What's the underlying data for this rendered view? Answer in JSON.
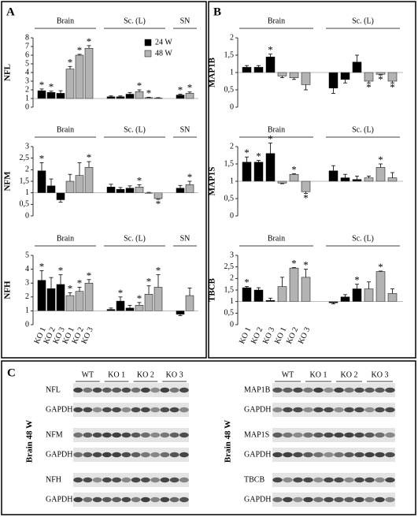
{
  "panel_labels": [
    "A",
    "B",
    "C"
  ],
  "chart_data": [
    {
      "type": "bar",
      "ylabel": "NFL",
      "ylim": [
        0,
        8
      ],
      "yticks": [
        0,
        1,
        2,
        3,
        4,
        5,
        6,
        7,
        8
      ],
      "baseline": 1,
      "legend": [
        {
          "name": "24 W",
          "color": "#000000"
        },
        {
          "name": "48 W",
          "color": "#b3b3b3"
        }
      ],
      "groups": [
        {
          "name": "Brain",
          "colors": [
            "#000000",
            "#000000",
            "#000000",
            "#b3b3b3",
            "#b3b3b3",
            "#b3b3b3"
          ],
          "values": [
            1.9,
            1.7,
            1.6,
            4.4,
            6.0,
            6.8
          ],
          "errors": [
            0.2,
            0.15,
            0.3,
            0.3,
            0.1,
            0.3
          ],
          "stars": [
            "*",
            "*",
            null,
            "*",
            "*",
            "*"
          ]
        },
        {
          "name": "Sc. (L)",
          "colors": [
            "#000000",
            "#000000",
            "#000000",
            "#b3b3b3",
            "#b3b3b3",
            "#b3b3b3"
          ],
          "values": [
            1.2,
            1.2,
            1.5,
            1.8,
            1.1,
            1.05
          ],
          "errors": [
            0.1,
            0.1,
            0.2,
            0.2,
            0.05,
            0.05
          ],
          "stars": [
            null,
            null,
            null,
            "*",
            "*",
            null
          ]
        },
        {
          "name": "SN",
          "colors": [
            "#000000",
            "#b3b3b3"
          ],
          "values": [
            1.4,
            1.6
          ],
          "errors": [
            0.1,
            0.15
          ],
          "stars": [
            "*",
            "*"
          ]
        }
      ]
    },
    {
      "type": "bar",
      "ylabel": "NFM",
      "ylim": [
        0,
        3
      ],
      "yticks": [
        0,
        {
          "value": 0.5,
          "label": "0,5"
        },
        1,
        {
          "value": 1.5,
          "label": "1,5"
        },
        2,
        {
          "value": 2.5,
          "label": "2,5"
        },
        3
      ],
      "baseline": 1,
      "groups": [
        {
          "name": "Brain",
          "colors": [
            "#000000",
            "#000000",
            "#000000",
            "#b3b3b3",
            "#b3b3b3",
            "#b3b3b3"
          ],
          "values": [
            1.95,
            1.3,
            0.7,
            1.5,
            1.75,
            2.1
          ],
          "errors": [
            0.35,
            0.3,
            0.1,
            0.3,
            0.55,
            0.25
          ],
          "stars": [
            "*",
            null,
            null,
            null,
            null,
            "*"
          ]
        },
        {
          "name": "Sc. (L)",
          "colors": [
            "#000000",
            "#000000",
            "#000000",
            "#b3b3b3",
            "#b3b3b3",
            "#b3b3b3"
          ],
          "values": [
            1.25,
            1.15,
            1.2,
            1.25,
            1.0,
            0.75
          ],
          "errors": [
            0.12,
            0.08,
            0.1,
            0.1,
            0.02,
            0.03
          ],
          "stars": [
            null,
            null,
            null,
            "*",
            null,
            "*"
          ]
        },
        {
          "name": "SN",
          "colors": [
            "#000000",
            "#b3b3b3"
          ],
          "values": [
            1.2,
            1.35
          ],
          "errors": [
            0.12,
            0.15
          ],
          "stars": [
            null,
            "*"
          ]
        }
      ]
    },
    {
      "type": "bar",
      "ylabel": "NFH",
      "ylim": [
        0,
        5
      ],
      "yticks": [
        0,
        1,
        2,
        3,
        4,
        5
      ],
      "baseline": 1,
      "groups": [
        {
          "name": "Brain",
          "colors": [
            "#000000",
            "#000000",
            "#000000",
            "#b3b3b3",
            "#b3b3b3",
            "#b3b3b3"
          ],
          "values": [
            3.2,
            2.6,
            2.9,
            2.1,
            2.4,
            3.0
          ],
          "errors": [
            0.7,
            0.8,
            0.7,
            0.2,
            0.3,
            0.25
          ],
          "stars": [
            "*",
            null,
            "*",
            "*",
            "*",
            "*"
          ],
          "labels": [
            "KO 1",
            "KO 2",
            "KO 3",
            "KO 1",
            "KO 2",
            "KO 3"
          ]
        },
        {
          "name": "Sc. (L)",
          "colors": [
            "#000000",
            "#000000",
            "#000000",
            "#b3b3b3",
            "#b3b3b3",
            "#b3b3b3"
          ],
          "values": [
            1.1,
            1.7,
            1.2,
            1.4,
            2.2,
            2.7
          ],
          "errors": [
            0.1,
            0.3,
            0.2,
            0.2,
            0.6,
            0.9
          ],
          "stars": [
            null,
            "*",
            null,
            "*",
            "*",
            "*"
          ]
        },
        {
          "name": "SN",
          "colors": [
            "#000000",
            "#b3b3b3"
          ],
          "values": [
            0.75,
            2.1
          ],
          "errors": [
            0.1,
            0.55
          ],
          "stars": [
            null,
            null
          ]
        }
      ]
    },
    {
      "type": "bar",
      "ylabel": "MAP1B",
      "ylim": [
        0,
        2
      ],
      "yticks": [
        0,
        {
          "value": 0.5,
          "label": "0,5"
        },
        1,
        {
          "value": 1.5,
          "label": "1,5"
        },
        2
      ],
      "baseline": 1,
      "groups": [
        {
          "name": "Brain",
          "colors": [
            "#000000",
            "#000000",
            "#000000",
            "#b3b3b3",
            "#b3b3b3",
            "#b3b3b3"
          ],
          "values": [
            1.15,
            1.15,
            1.45,
            0.9,
            0.85,
            0.65
          ],
          "errors": [
            0.05,
            0.05,
            0.08,
            0.05,
            0.05,
            0.15
          ],
          "stars": [
            null,
            null,
            "*",
            null,
            null,
            null
          ]
        },
        {
          "name": "Sc. (L)",
          "colors": [
            "#000000",
            "#000000",
            "#000000",
            "#b3b3b3",
            "#b3b3b3",
            "#b3b3b3"
          ],
          "values": [
            0.55,
            0.8,
            1.3,
            0.75,
            0.95,
            0.75
          ],
          "errors": [
            0.15,
            0.1,
            0.2,
            0.05,
            0.02,
            0.05
          ],
          "stars": [
            null,
            null,
            null,
            "*",
            "*",
            "*"
          ]
        }
      ]
    },
    {
      "type": "bar",
      "ylabel": "MAP1S",
      "ylim": [
        0,
        2
      ],
      "yticks": [
        0,
        {
          "value": 0.5,
          "label": "0,5"
        },
        1,
        {
          "value": 1.5,
          "label": "1,5"
        },
        2
      ],
      "baseline": 1,
      "groups": [
        {
          "name": "Brain",
          "colors": [
            "#000000",
            "#000000",
            "#000000",
            "#b3b3b3",
            "#b3b3b3",
            "#b3b3b3"
          ],
          "values": [
            1.55,
            1.55,
            1.8,
            0.95,
            1.2,
            0.7
          ],
          "errors": [
            0.15,
            0.05,
            0.3,
            0.02,
            0.02,
            0.05
          ],
          "stars": [
            "*",
            "*",
            "*",
            null,
            "*",
            "*"
          ]
        },
        {
          "name": "Sc. (L)",
          "colors": [
            "#000000",
            "#000000",
            "#000000",
            "#b3b3b3",
            "#b3b3b3",
            "#b3b3b3"
          ],
          "values": [
            1.3,
            1.1,
            1.05,
            1.1,
            1.4,
            1.1
          ],
          "errors": [
            0.15,
            0.1,
            0.1,
            0.05,
            0.1,
            0.15
          ],
          "stars": [
            null,
            null,
            null,
            null,
            "*",
            null
          ]
        }
      ]
    },
    {
      "type": "bar",
      "ylabel": "TBCB",
      "ylim": [
        0,
        3
      ],
      "yticks": [
        0,
        {
          "value": 0.5,
          "label": "0,5"
        },
        1,
        {
          "value": 1.5,
          "label": "1,5"
        },
        2,
        {
          "value": 2.5,
          "label": "2,5"
        },
        3
      ],
      "baseline": 1,
      "groups": [
        {
          "name": "Brain",
          "colors": [
            "#000000",
            "#000000",
            "#000000",
            "#b3b3b3",
            "#b3b3b3",
            "#b3b3b3"
          ],
          "values": [
            1.6,
            1.5,
            1.05,
            1.65,
            2.45,
            2.05
          ],
          "errors": [
            0.05,
            0.1,
            0.1,
            0.4,
            0.02,
            0.35
          ],
          "stars": [
            "*",
            null,
            null,
            null,
            "*",
            "*"
          ],
          "labels": [
            "KO 1",
            "KO 2",
            "KO 3",
            "KO 1",
            "KO 2",
            "KO 3"
          ]
        },
        {
          "name": "Sc. (L)",
          "colors": [
            "#000000",
            "#000000",
            "#000000",
            "#b3b3b3",
            "#b3b3b3",
            "#b3b3b3"
          ],
          "values": [
            0.95,
            1.2,
            1.55,
            1.55,
            2.3,
            1.35
          ],
          "errors": [
            0.05,
            0.1,
            0.2,
            0.3,
            0.02,
            0.2
          ],
          "stars": [
            null,
            null,
            "*",
            null,
            "*",
            null
          ]
        }
      ]
    }
  ],
  "blots": [
    {
      "side_label": "Brain 48 W",
      "lanes": [
        "WT",
        "KO 1",
        "KO 2",
        "KO 3"
      ],
      "rows": [
        "NFL",
        "GAPDH",
        "NFM",
        "GAPDH",
        "NFH",
        "GAPDH"
      ]
    },
    {
      "side_label": "Brain 48 W",
      "lanes": [
        "WT",
        "KO 1",
        "KO 2",
        "KO 3"
      ],
      "rows": [
        "MAP1B",
        "GAPDH",
        "MAP1S",
        "GAPDH",
        "TBCB",
        "GAPDH"
      ]
    }
  ]
}
